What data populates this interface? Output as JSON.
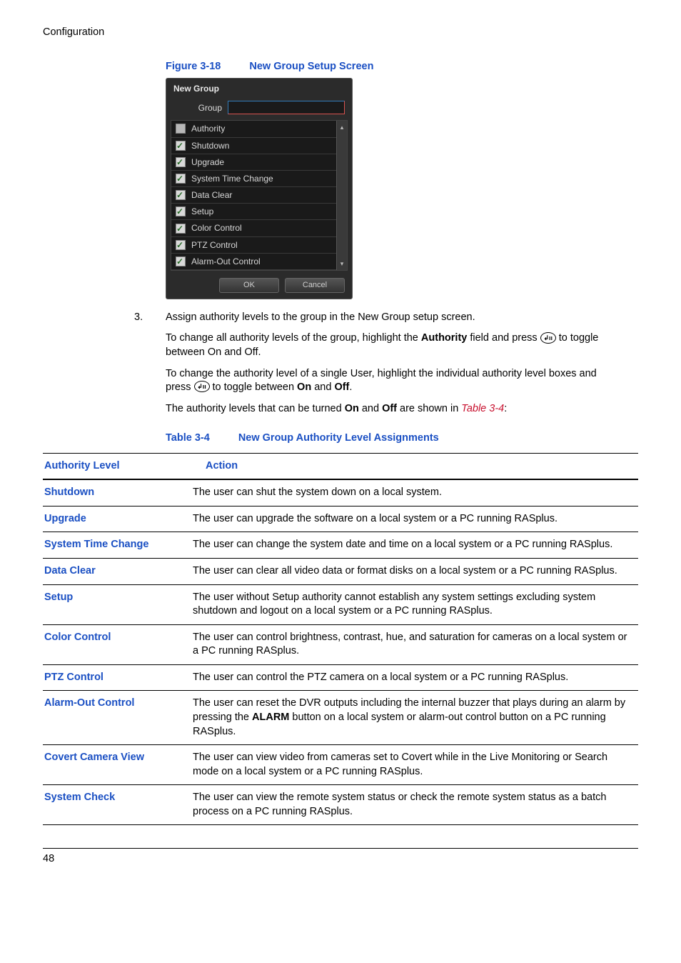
{
  "header": {
    "section": "Configuration"
  },
  "figure": {
    "label": "Figure 3-18",
    "title": "New Group Setup Screen",
    "dialog": {
      "title": "New Group",
      "group_label": "Group",
      "authority_header": "Authority",
      "items": [
        {
          "label": "Shutdown"
        },
        {
          "label": "Upgrade"
        },
        {
          "label": "System Time Change"
        },
        {
          "label": "Data Clear"
        },
        {
          "label": "Setup"
        },
        {
          "label": "Color Control"
        },
        {
          "label": "PTZ Control"
        },
        {
          "label": "Alarm-Out Control"
        }
      ],
      "ok_label": "OK",
      "cancel_label": "Cancel"
    }
  },
  "step3": {
    "number": "3.",
    "line1": "Assign authority levels to the group in the New Group setup screen.",
    "line2a": "To change all authority levels of the group, highlight the ",
    "line2b": "Authority",
    "line2c": " field and press ",
    "line2d": " to toggle between On and Off.",
    "line3a": "To change the authority level of a single User, highlight the individual authority level boxes and press ",
    "line3b": " to toggle between ",
    "line3c": "On",
    "line3d": " and ",
    "line3e": "Off",
    "line3f": ".",
    "line4a": "The authority levels that can be turned ",
    "line4b": "On",
    "line4c": " and ",
    "line4d": "Off",
    "line4e": " are shown in ",
    "line4f": "Table 3-4",
    "line4g": ":"
  },
  "table": {
    "label": "Table 3-4",
    "title": "New Group Authority Level Assignments",
    "header_level": "Authority Level",
    "header_action": "Action",
    "rows": [
      {
        "level": "Shutdown",
        "action": "The user can shut the system down on a local system."
      },
      {
        "level": "Upgrade",
        "action": "The user can upgrade the software on a local system or a PC running RASplus."
      },
      {
        "level": "System Time Change",
        "action": "The user can change the system date and time on a local system or a PC running RASplus."
      },
      {
        "level": "Data Clear",
        "action": "The user can clear all video data or format disks on a local system or a PC running RASplus."
      },
      {
        "level": "Setup",
        "action": "The user without Setup authority cannot establish any system settings excluding system shutdown and logout on a local system or a PC running RASplus."
      },
      {
        "level": "Color Control",
        "action": "The user can control brightness, contrast, hue, and saturation for cameras on a local system or a PC running RASplus."
      },
      {
        "level": "PTZ Control",
        "action": "The user can control the PTZ camera on a local system or a PC running RASplus."
      },
      {
        "level": "Alarm-Out Control",
        "action_pre": "The user can reset the DVR outputs including the internal buzzer that plays during an alarm by pressing the ",
        "action_bold": "ALARM",
        "action_post": " button on a local system or alarm-out control button on a PC running RASplus."
      },
      {
        "level": "Covert Camera View",
        "action": "The user can view video from cameras set to Covert while in the Live Monitoring or Search mode on a local system or a PC running RASplus."
      },
      {
        "level": "System Check",
        "action": "The user can view the remote system status or check the remote system status as a batch process on a PC running RASplus."
      }
    ]
  },
  "footer": {
    "page": "48"
  },
  "icon": {
    "enter": "↲ıı"
  },
  "style": {
    "link_color": "#1a4fc3",
    "italic_ref_color": "#c8102e"
  }
}
